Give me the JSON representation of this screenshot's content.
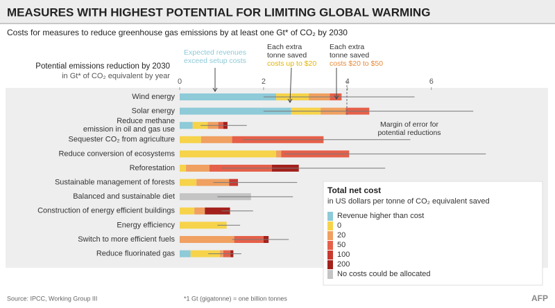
{
  "chart_data": {
    "type": "stacked-hbar",
    "title": "MEASURES WITH HIGHEST POTENTIAL FOR LIMITING GLOBAL WARMING",
    "subtitle": "Costs for measures to reduce greenhouse gas emissions by at least one Gt* of CO₂ by 2030",
    "x_label": [
      "Potential emissions reduction by 2030",
      "in Gt* of CO₂ equivalent by year"
    ],
    "categories": [
      "Wind energy",
      "Solar energy",
      "Reduce methane\nemission in oil and gas use",
      "Sequester CO₂ from agriculture",
      "Reduce conversion of ecosystems",
      "Reforestation",
      "Sustainable management of forests",
      "Balanced and sustainable diet",
      "Construction of energy efficient buildings",
      "Energy efficiency",
      "Switch to more efficient fuels",
      "Reduce fluorinated gas"
    ],
    "series": [
      {
        "name": "Revenue higher than cost",
        "color": "#8ecad8",
        "values": [
          2.3,
          2.66,
          0.31,
          0,
          0,
          0,
          0,
          0,
          0,
          0,
          0,
          0.26
        ]
      },
      {
        "name": "0",
        "color": "#f6d34a",
        "values": [
          0.78,
          0.7,
          0.36,
          0.51,
          2.3,
          0.15,
          0.4,
          0,
          0.35,
          1.12,
          0,
          0.7
        ]
      },
      {
        "name": "20",
        "color": "#f0a060",
        "values": [
          0.5,
          0.6,
          0.25,
          0.74,
          0.12,
          0.56,
          0.78,
          0,
          0.25,
          0,
          1.3,
          0.08
        ]
      },
      {
        "name": "50",
        "color": "#e5604a",
        "values": [
          0.28,
          0.56,
          0.12,
          2.18,
          1.62,
          1.49,
          0,
          0,
          0,
          0,
          0.7,
          0.17
        ]
      },
      {
        "name": "100",
        "color": "#c83a30",
        "values": [
          0,
          0,
          0,
          0,
          0,
          0,
          0.21,
          0,
          0,
          0,
          0,
          0
        ]
      },
      {
        "name": "200",
        "color": "#a3211c",
        "values": [
          0,
          0,
          0.1,
          0,
          0,
          0.64,
          0,
          0,
          0.6,
          0,
          0.12,
          0.07
        ]
      },
      {
        "name": "No costs could be allocated",
        "color": "#c4c4c4",
        "values": [
          0,
          0,
          0,
          0,
          0,
          0,
          0,
          1.7,
          0,
          0,
          0,
          0
        ]
      }
    ],
    "ranges": [
      [
        2.0,
        5.6
      ],
      [
        2.0,
        7.0
      ],
      [
        0.5,
        1.6
      ],
      [
        1.5,
        5.5
      ],
      [
        2.5,
        7.3
      ],
      [
        1.0,
        4.9
      ],
      [
        0.8,
        2.8
      ],
      [
        0.9,
        2.7
      ],
      [
        1.0,
        1.75
      ],
      [
        0.9,
        1.44
      ],
      [
        1.25,
        2.6
      ],
      [
        0.68,
        1.47
      ]
    ],
    "xlim": [
      0,
      8.7
    ],
    "xticks": [
      0,
      2,
      4,
      6
    ],
    "annotations": [
      {
        "lines": [
          "Expected revenues",
          "exceed setup costs"
        ]
      },
      {
        "lines": [
          "Each extra",
          "tonne saved",
          "costs up to $20"
        ]
      },
      {
        "lines": [
          "Each extra",
          "tonne saved",
          "costs $20 to $50"
        ]
      },
      {
        "lines": [
          "Margin of error for",
          "potential reductions"
        ]
      }
    ],
    "legend": {
      "title": "Total net cost",
      "subtitle": "in US dollars per tonne of  CO₂ equivalent saved"
    },
    "source": "Source: IPCC, Working Group III",
    "footnote": "*1 Gt (gigatonne) = one billion tonnes",
    "credit": "AFP"
  }
}
